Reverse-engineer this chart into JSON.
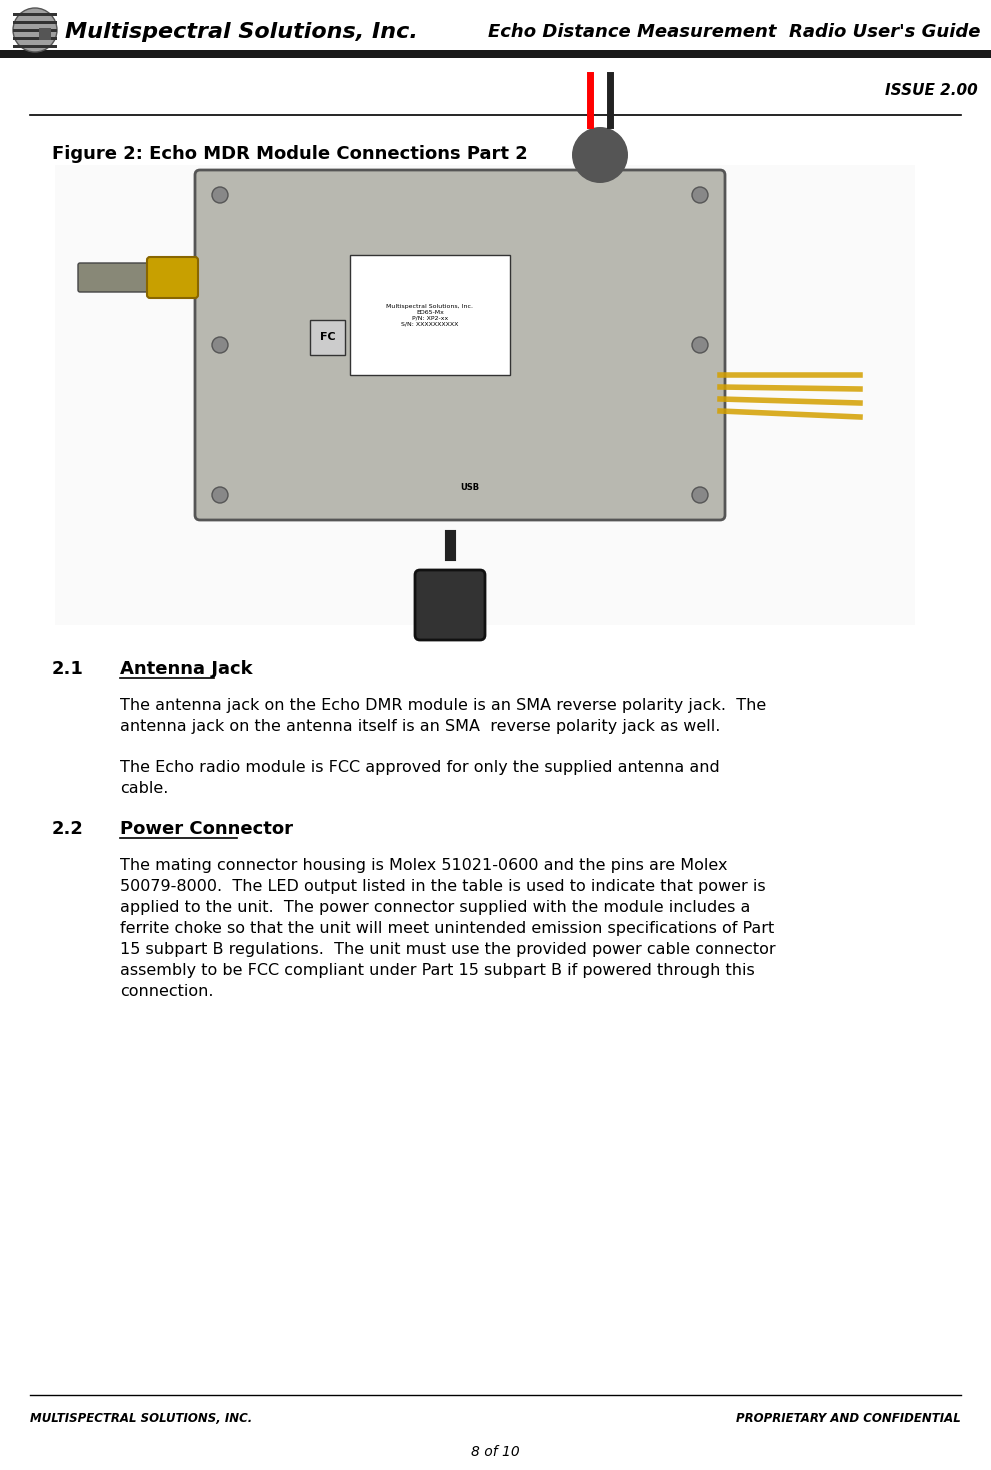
{
  "header_title_right": "Echo Distance Measurement  Radio User's Guide",
  "header_bar_color": "#1a1a1a",
  "issue_text": "ISSUE 2.00",
  "figure_title": "Figure 2: Echo MDR Module Connections Part 2",
  "section_21_num": "2.1",
  "section_21_title": "Antenna Jack",
  "section_21_body1": "The antenna jack on the Echo DMR module is an SMA reverse polarity jack.  The\nantenna jack on the antenna itself is an SMA  reverse polarity jack as well.",
  "section_21_body2": "The Echo radio module is FCC approved for only the supplied antenna and\ncable.",
  "section_22_num": "2.2",
  "section_22_title": "Power Connector",
  "section_22_body": "The mating connector housing is Molex 51021-0600 and the pins are Molex\n50079-8000.  The LED output listed in the table is used to indicate that power is\napplied to the unit.  The power connector supplied with the module includes a\nferrite choke so that the unit will meet unintended emission specifications of Part\n15 subpart B regulations.  The unit must use the provided power cable connector\nassembly to be FCC compliant under Part 15 subpart B if powered through this\nconnection.",
  "footer_left": "MULTISPECTRAL SOLUTIONS, INC.",
  "footer_right": "PROPRIETARY AND CONFIDENTIAL",
  "footer_page": "8 of 10",
  "bg_color": "#ffffff",
  "text_color": "#000000",
  "header_text_color": "#000000"
}
